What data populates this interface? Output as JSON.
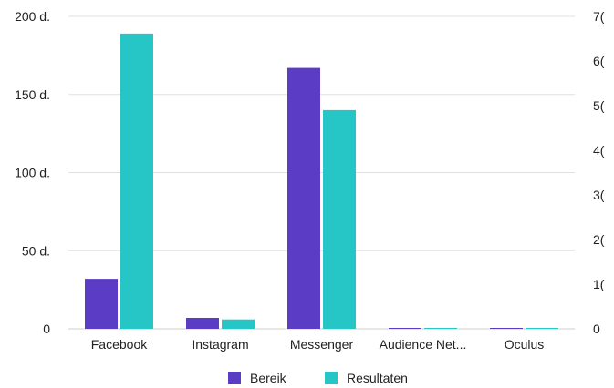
{
  "chart_data": {
    "type": "bar",
    "categories": [
      "Facebook",
      "Instagram",
      "Messenger",
      "Audience Net...",
      "Oculus"
    ],
    "series": [
      {
        "name": "Bereik",
        "color": "#5b3cc4",
        "values": [
          32,
          7,
          167,
          0.5,
          0.5
        ]
      },
      {
        "name": "Resultaten",
        "color": "#26c6c6",
        "values": [
          189,
          6,
          140,
          0.5,
          0.5
        ]
      }
    ],
    "y_left": {
      "ticks": [
        0,
        50,
        100,
        150,
        200
      ],
      "tick_labels": [
        "0",
        "50 d.",
        "100 d.",
        "150 d.",
        "200 d."
      ],
      "ylim": [
        0,
        200
      ]
    },
    "y_right": {
      "tick_labels": [
        "0",
        "1(",
        "2(",
        "3(",
        "4(",
        "5(",
        "6(",
        "7("
      ]
    },
    "grid": true,
    "legend_position": "bottom-center"
  }
}
